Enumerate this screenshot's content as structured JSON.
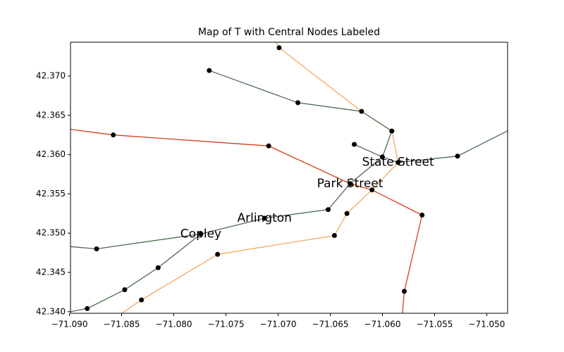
{
  "chart_data": {
    "type": "network",
    "title": "Map of T with Central Nodes Labeled",
    "xlim": [
      -71.0899,
      -71.048
    ],
    "ylim": [
      42.3398,
      42.3743
    ],
    "xticks": [
      {
        "value": -71.09,
        "label": "−71.090"
      },
      {
        "value": -71.085,
        "label": "−71.085"
      },
      {
        "value": -71.08,
        "label": "−71.080"
      },
      {
        "value": -71.075,
        "label": "−71.075"
      },
      {
        "value": -71.07,
        "label": "−71.070"
      },
      {
        "value": -71.065,
        "label": "−71.065"
      },
      {
        "value": -71.06,
        "label": "−71.060"
      },
      {
        "value": -71.055,
        "label": "−71.055"
      },
      {
        "value": -71.05,
        "label": "−71.050"
      }
    ],
    "yticks": [
      {
        "value": 42.34,
        "label": "42.340"
      },
      {
        "value": 42.345,
        "label": "42.345"
      },
      {
        "value": 42.35,
        "label": "42.350"
      },
      {
        "value": 42.355,
        "label": "42.355"
      },
      {
        "value": 42.36,
        "label": "42.360"
      },
      {
        "value": 42.365,
        "label": "42.365"
      },
      {
        "value": 42.37,
        "label": "42.370"
      }
    ],
    "series": [
      {
        "color": "#f4a95e",
        "x": [
          -71.0706,
          -71.0699,
          -71.062,
          -71.0591,
          -71.0585,
          -71.061,
          -71.0634,
          -71.0646,
          -71.0758,
          -71.0831,
          -71.0852
        ],
        "y": [
          42.3752,
          42.3736,
          42.3655,
          42.363,
          42.359,
          42.3555,
          42.3525,
          42.3497,
          42.3473,
          42.3415,
          42.3396
        ]
      },
      {
        "color": "#d0421a",
        "x": [
          -71.091,
          -71.0858,
          -71.0709,
          -71.0631,
          -71.061,
          -71.0562,
          -71.0579,
          -71.0581
        ],
        "y": [
          42.3634,
          42.3625,
          42.3611,
          42.3563,
          42.3555,
          42.3523,
          42.3426,
          42.3396
        ]
      },
      {
        "color": "#4d6b4d",
        "x": [
          -71.0766,
          -71.0681,
          -71.062,
          -71.0591,
          -71.06,
          -71.0631,
          -71.0652,
          -71.0713,
          -71.0774,
          -71.0874,
          -71.0909
        ],
        "y": [
          42.3707,
          42.3666,
          42.3655,
          42.363,
          42.3597,
          42.3563,
          42.353,
          42.3519,
          42.3499,
          42.348,
          42.3484
        ]
      },
      {
        "color": "#4d6b4d",
        "x": [
          -71.0627,
          -71.06,
          -71.0585,
          -71.0528,
          -71.047
        ],
        "y": [
          42.3613,
          42.3597,
          42.359,
          42.3598,
          42.3637
        ]
      },
      {
        "color": "#4d6b4d",
        "x": [
          -71.0899,
          -71.0883,
          -71.0847,
          -71.0815,
          -71.0774
        ],
        "y": [
          42.34,
          42.3404,
          42.3428,
          42.3456,
          42.3499
        ]
      }
    ],
    "nodes": {
      "color": "#000000",
      "x": [
        -71.0699,
        -71.0766,
        -71.0681,
        -71.062,
        -71.0591,
        -71.0858,
        -71.0709,
        -71.0627,
        -71.06,
        -71.0585,
        -71.0528,
        -71.0631,
        -71.061,
        -71.0652,
        -71.0634,
        -71.0562,
        -71.0713,
        -71.0646,
        -71.0774,
        -71.0874,
        -71.0758,
        -71.0815,
        -71.0847,
        -71.0831,
        -71.0883,
        -71.0579
      ],
      "y": [
        42.3736,
        42.3707,
        42.3666,
        42.3655,
        42.363,
        42.3625,
        42.3611,
        42.3613,
        42.3597,
        42.359,
        42.3598,
        42.3563,
        42.3555,
        42.353,
        42.3525,
        42.3523,
        42.3519,
        42.3497,
        42.3499,
        42.348,
        42.3473,
        42.3456,
        42.3428,
        42.3415,
        42.3404,
        42.3426
      ]
    },
    "annotations": [
      {
        "text": "State Street",
        "x": -71.0585,
        "y": 42.359
      },
      {
        "text": "Park Street",
        "x": -71.0631,
        "y": 42.3563
      },
      {
        "text": "Arlington",
        "x": -71.0713,
        "y": 42.3519
      },
      {
        "text": "Copley",
        "x": -71.0774,
        "y": 42.3499
      }
    ]
  }
}
